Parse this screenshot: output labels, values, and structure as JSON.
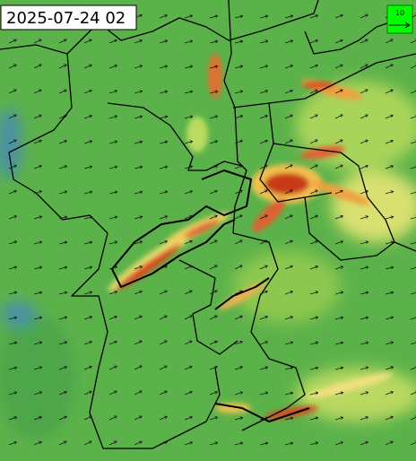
{
  "timestamp": "2025-07-24 02",
  "legend": {
    "label": "10"
  }
}
